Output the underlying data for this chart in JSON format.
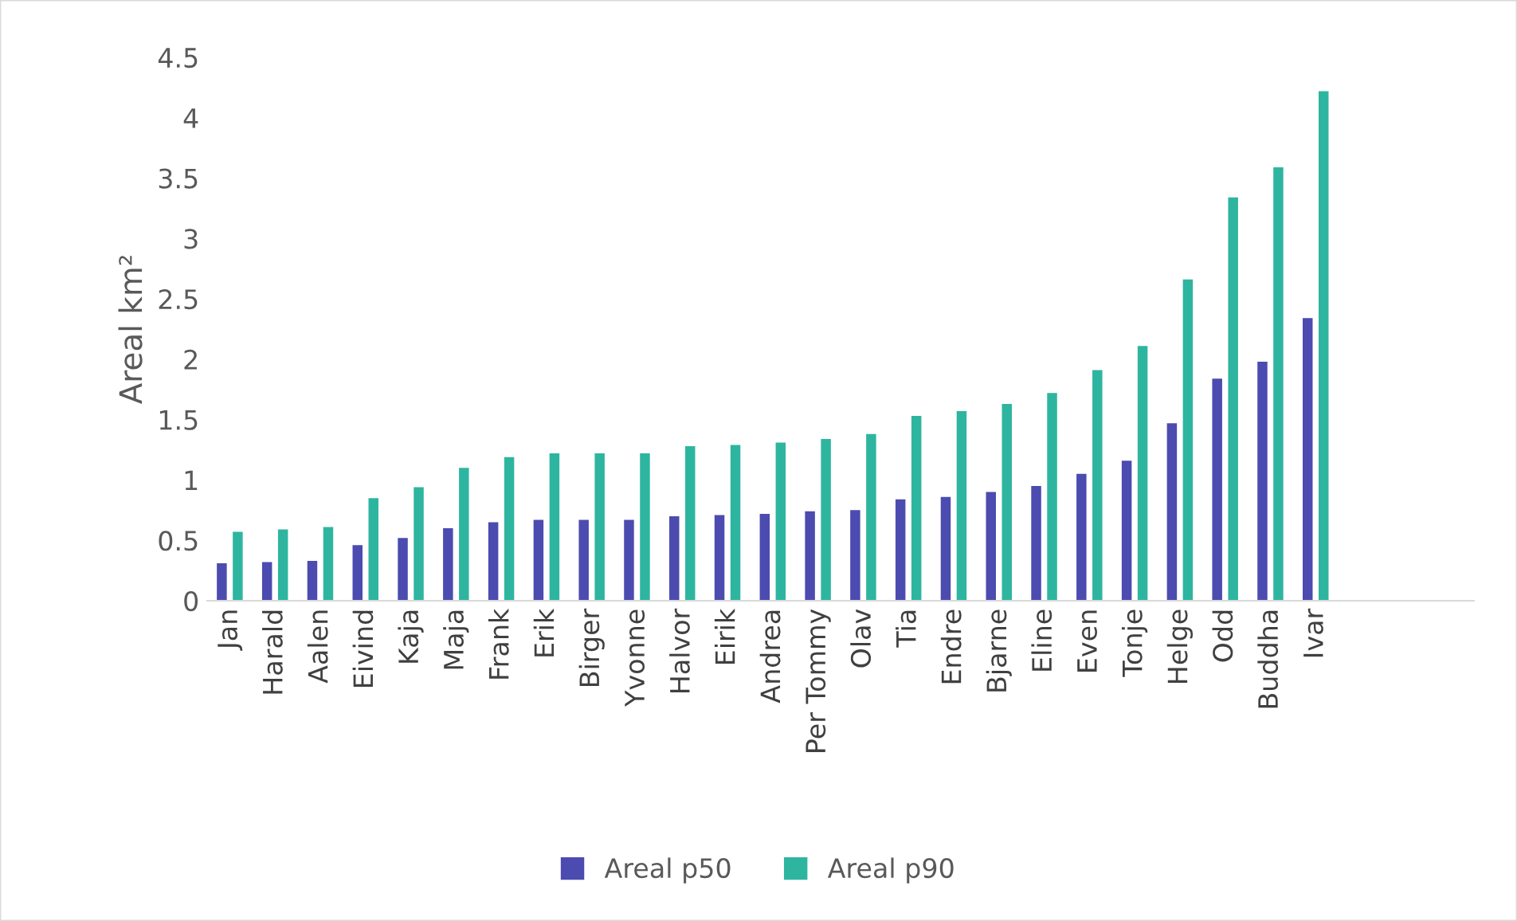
{
  "chart_data": {
    "type": "bar",
    "ylabel": "Areal km²",
    "categories": [
      "Jan",
      "Harald",
      "Aalen",
      "Eivind",
      "Kaja",
      "Maja",
      "Frank",
      "Erik",
      "Birger",
      "Yvonne",
      "Halvor",
      "Eirik",
      "Andrea",
      "Per Tommy",
      "Olav",
      "Tia",
      "Endre",
      "Bjarne",
      "Eline",
      "Even",
      "Tonje",
      "Helge",
      "Odd",
      "Buddha",
      "Ivar",
      null,
      null,
      null
    ],
    "series": [
      {
        "name": "Areal p50",
        "color": "#4b4bb0",
        "values": [
          0.31,
          0.32,
          0.33,
          0.46,
          0.52,
          0.6,
          0.65,
          0.67,
          0.67,
          0.67,
          0.7,
          0.71,
          0.72,
          0.74,
          0.75,
          0.84,
          0.86,
          0.9,
          0.95,
          1.05,
          1.16,
          1.47,
          1.84,
          1.98,
          2.34,
          null,
          null,
          null
        ]
      },
      {
        "name": "Areal p90",
        "color": "#2eb5a0",
        "values": [
          0.57,
          0.59,
          0.61,
          0.85,
          0.94,
          1.1,
          1.19,
          1.22,
          1.22,
          1.22,
          1.28,
          1.29,
          1.31,
          1.34,
          1.38,
          1.53,
          1.57,
          1.63,
          1.72,
          1.91,
          2.11,
          2.66,
          3.34,
          3.59,
          4.22,
          null,
          null,
          null
        ]
      }
    ],
    "ylim": [
      0,
      4.5
    ],
    "yticks": [
      0,
      0.5,
      1,
      1.5,
      2,
      2.5,
      3,
      3.5,
      4,
      4.5
    ],
    "grid": false,
    "legend": "bottom"
  }
}
